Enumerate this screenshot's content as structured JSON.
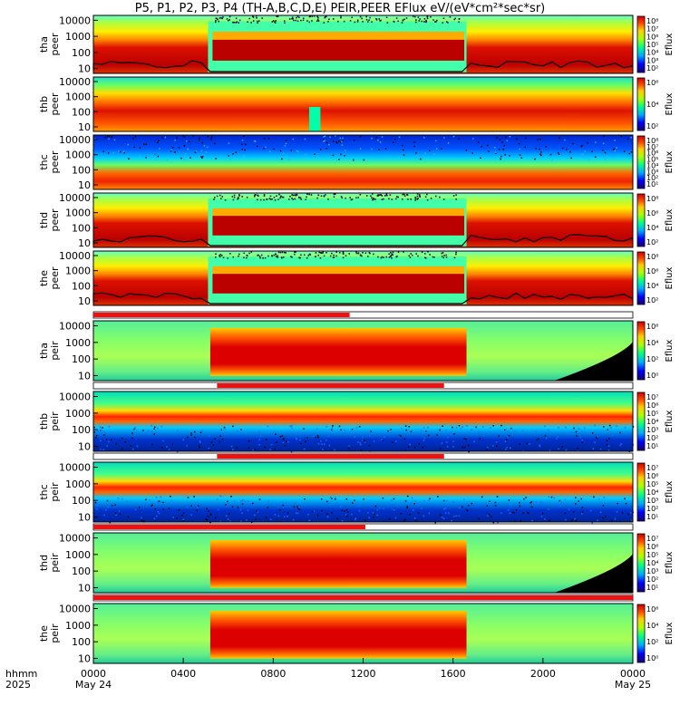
{
  "title": "P5, P1, P2, P3, P4 (TH-A,B,C,D,E) PEIR,PEER EFlux eV/(eV*cm²*sec*sr)",
  "chart_data": {
    "type": "heatmap",
    "description_of_axes": "time vs energy spectrograms",
    "x_axis": {
      "label_row1": "hhmm",
      "label_row2": "2025",
      "ticks": [
        {
          "value": 0,
          "label": "0000",
          "date": "May 24"
        },
        {
          "value": 4,
          "label": "0400"
        },
        {
          "value": 8,
          "label": "0800"
        },
        {
          "value": 12,
          "label": "1200"
        },
        {
          "value": 16,
          "label": "1600"
        },
        {
          "value": 20,
          "label": "2000"
        },
        {
          "value": 24,
          "label": "0000",
          "date": "May 25"
        }
      ],
      "range_hours": [
        0,
        24
      ]
    },
    "panels": [
      {
        "name": "tha peer",
        "ylabel1": "tha",
        "ylabel2": "peer",
        "yticks": [
          "10000",
          "1000",
          "100",
          "10"
        ],
        "yrange": [
          5,
          20000
        ],
        "cb_label": "Eflux",
        "cb_ticks": [
          "10⁸",
          "10⁷",
          "10⁶",
          "10⁵",
          "10⁴",
          "10³",
          "10²"
        ],
        "bar": null
      },
      {
        "name": "thb peer",
        "ylabel1": "thb",
        "ylabel2": "peer",
        "yticks": [
          "10000",
          "1000",
          "100",
          "10"
        ],
        "yrange": [
          5,
          20000
        ],
        "cb_label": "Eflux",
        "cb_ticks": [
          "10⁶",
          "10⁴",
          "10²"
        ],
        "bar": null
      },
      {
        "name": "thc peer",
        "ylabel1": "thc",
        "ylabel2": "peer",
        "yticks": [
          "10000",
          "1000",
          "100",
          "10"
        ],
        "yrange": [
          5,
          20000
        ],
        "cb_label": "Eflux",
        "cb_ticks": [
          "10⁸",
          "10⁷",
          "10⁶",
          "10⁵",
          "10⁴",
          "10³",
          "10²",
          "10¹"
        ],
        "bar": null
      },
      {
        "name": "thd peer",
        "ylabel1": "thd",
        "ylabel2": "peer",
        "yticks": [
          "10000",
          "1000",
          "100",
          "10"
        ],
        "yrange": [
          5,
          20000
        ],
        "cb_label": "Eflux",
        "cb_ticks": [
          "10⁸",
          "10⁶",
          "10⁴",
          "10²"
        ],
        "bar": null
      },
      {
        "name": "the peer",
        "ylabel1": "the",
        "ylabel2": "peer",
        "yticks": [
          "10000",
          "1000",
          "100",
          "10"
        ],
        "yrange": [
          5,
          20000
        ],
        "cb_label": "Eflux",
        "cb_ticks": [
          "10⁸",
          "10⁶",
          "10⁴",
          "10²"
        ],
        "bar": null
      },
      {
        "name": "tha peir",
        "ylabel1": "tha",
        "ylabel2": "peir",
        "yticks": [
          "10000",
          "1000",
          "100",
          "10"
        ],
        "yrange": [
          5,
          20000
        ],
        "cb_label": "Eflux",
        "cb_ticks": [
          "10⁶",
          "10⁴",
          "10²",
          "10⁰"
        ],
        "bar": {
          "start_hours": 0,
          "end_hours": 11.4
        }
      },
      {
        "name": "thb peir",
        "ylabel1": "thb",
        "ylabel2": "peir",
        "yticks": [
          "10000",
          "1000",
          "100",
          "10"
        ],
        "yrange": [
          5,
          20000
        ],
        "cb_label": "Eflux",
        "cb_ticks": [
          "10⁷",
          "10⁶",
          "10⁵",
          "10⁴",
          "10³",
          "10²",
          "10¹"
        ],
        "bar": {
          "start_hours": 5.5,
          "end_hours": 15.6
        }
      },
      {
        "name": "thc peir",
        "ylabel1": "thc",
        "ylabel2": "peir",
        "yticks": [
          "10000",
          "1000",
          "100",
          "10"
        ],
        "yrange": [
          5,
          20000
        ],
        "cb_label": "Eflux",
        "cb_ticks": [
          "10⁷",
          "10⁶",
          "10⁵",
          "10⁴",
          "10³",
          "10²",
          "10¹"
        ],
        "bar": {
          "start_hours": 5.5,
          "end_hours": 15.6
        }
      },
      {
        "name": "thd peir",
        "ylabel1": "thd",
        "ylabel2": "peir",
        "yticks": [
          "10000",
          "1000",
          "100",
          "10"
        ],
        "yrange": [
          5,
          20000
        ],
        "cb_label": "Eflux",
        "cb_ticks": [
          "10⁷",
          "10⁶",
          "10⁵",
          "10⁴",
          "10³",
          "10²",
          "10¹"
        ],
        "bar": {
          "start_hours": 0,
          "end_hours": 12.1
        }
      },
      {
        "name": "the peir",
        "ylabel1": "the",
        "ylabel2": "peir",
        "yticks": [
          "10000",
          "1000",
          "100",
          "10"
        ],
        "yrange": [
          5,
          20000
        ],
        "cb_label": "Eflux",
        "cb_ticks": [
          "10⁶",
          "10⁴",
          "10²",
          "10⁰"
        ],
        "bar": {
          "start_hours": 0,
          "end_hours": 24
        }
      }
    ],
    "colors": {
      "background": "#cc2200",
      "dark_band": "#a80000",
      "bar": "#ee1111",
      "curve": "#000000"
    }
  }
}
